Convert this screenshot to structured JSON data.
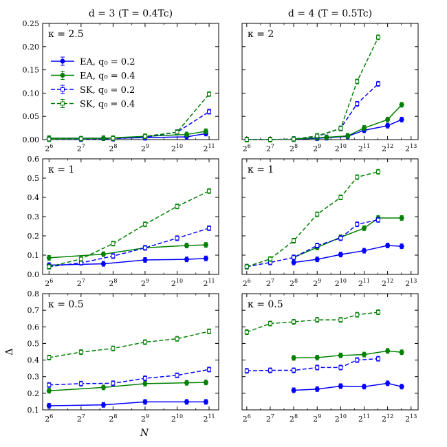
{
  "colors": {
    "EA_q02": "#0000ff",
    "EA_q04": "#008000",
    "SK_q02": "#0000ff",
    "SK_q04": "#008000"
  },
  "legend": [
    {
      "label": "EA, q₀ = 0.2",
      "color": "#0000ff",
      "dash": false,
      "marker": "circle"
    },
    {
      "label": "EA, q₀ = 0.4",
      "color": "#008000",
      "dash": false,
      "marker": "circle"
    },
    {
      "label": "SK, q₀ = 0.2",
      "color": "#0000ff",
      "dash": true,
      "marker": "square"
    },
    {
      "label": "SK, q₀ = 0.4",
      "color": "#008000",
      "dash": true,
      "marker": "square"
    }
  ],
  "chart_data": [
    {
      "type": "line",
      "col": 0,
      "row": 0,
      "title": "d = 3   (T = 0.4Tc)",
      "kappa": "κ = 2.5",
      "xlabel": "",
      "ylabel": "",
      "xlim_log2": [
        5.8,
        11.3
      ],
      "xticks_log2": [
        6,
        7,
        8,
        9,
        10,
        11
      ],
      "ylim": [
        0,
        0.25
      ],
      "yticks": [
        0.0,
        0.05,
        0.1,
        0.15,
        0.2,
        0.25
      ],
      "ytick_labels": [
        "0.00",
        "0.05",
        "0.10",
        "0.15",
        "0.20",
        "0.25"
      ],
      "show_legend": true,
      "series": [
        {
          "name": "EA, q0 = 0.2",
          "log2N": [
            6,
            7.7,
            9,
            10.3,
            10.9
          ],
          "values": [
            0.003,
            0.003,
            0.004,
            0.006,
            0.013
          ]
        },
        {
          "name": "EA, q0 = 0.4",
          "log2N": [
            6,
            7.7,
            9,
            10.3,
            10.9
          ],
          "values": [
            0.003,
            0.003,
            0.007,
            0.011,
            0.018
          ]
        },
        {
          "name": "SK, q0 = 0.2",
          "log2N": [
            6,
            7,
            8,
            9,
            10,
            11
          ],
          "values": [
            0.001,
            0.001,
            0.002,
            0.005,
            0.016,
            0.06
          ]
        },
        {
          "name": "SK, q0 = 0.4",
          "log2N": [
            6,
            7,
            8,
            9,
            10,
            11
          ],
          "values": [
            0.001,
            0.002,
            0.003,
            0.007,
            0.016,
            0.098
          ]
        }
      ]
    },
    {
      "type": "line",
      "col": 1,
      "row": 0,
      "title": "d = 4   (T = 0.5Tc)",
      "kappa": "κ = 2",
      "xlabel": "",
      "ylabel": "",
      "xlim_log2": [
        5.8,
        13.3
      ],
      "xticks_log2": [
        6,
        7,
        8,
        9,
        10,
        11,
        12,
        13
      ],
      "ylim": [
        0,
        0.25
      ],
      "yticks": [
        0.0,
        0.05,
        0.1,
        0.15,
        0.2,
        0.25
      ],
      "ytick_labels": [],
      "show_legend": false,
      "series": [
        {
          "name": "EA, q0 = 0.2",
          "log2N": [
            8,
            9,
            9.4,
            10.3,
            11,
            12,
            12.6
          ],
          "values": [
            0.001,
            0.003,
            0.004,
            0.007,
            0.02,
            0.03,
            0.043
          ]
        },
        {
          "name": "EA, q0 = 0.4",
          "log2N": [
            8,
            9,
            9.4,
            10.3,
            11,
            12,
            12.6
          ],
          "values": [
            0.001,
            0.004,
            0.005,
            0.008,
            0.025,
            0.043,
            0.075
          ]
        },
        {
          "name": "SK, q0 = 0.2",
          "log2N": [
            6,
            7,
            8,
            9,
            10,
            10.7,
            11.6
          ],
          "values": [
            0.0,
            0.0,
            0.001,
            0.007,
            0.024,
            0.077,
            0.12
          ]
        },
        {
          "name": "SK, q0 = 0.4",
          "log2N": [
            6,
            7,
            8,
            9,
            10,
            10.7,
            11.6
          ],
          "values": [
            0.0,
            0.0,
            0.001,
            0.008,
            0.024,
            0.125,
            0.22
          ]
        }
      ]
    },
    {
      "type": "line",
      "col": 0,
      "row": 1,
      "title": "",
      "kappa": "κ = 1",
      "xlabel": "",
      "ylabel": "",
      "xlim_log2": [
        5.8,
        11.3
      ],
      "xticks_log2": [
        6,
        7,
        8,
        9,
        10,
        11
      ],
      "ylim": [
        0,
        0.6
      ],
      "yticks": [
        0.0,
        0.1,
        0.2,
        0.3,
        0.4,
        0.5,
        0.6
      ],
      "ytick_labels": [
        "0.0",
        "0.1",
        "0.2",
        "0.3",
        "0.4",
        "0.5",
        "0.6"
      ],
      "show_legend": false,
      "series": [
        {
          "name": "EA, q0 = 0.2",
          "log2N": [
            6,
            7.7,
            9,
            10.3,
            10.9
          ],
          "values": [
            0.048,
            0.055,
            0.075,
            0.078,
            0.083
          ]
        },
        {
          "name": "EA, q0 = 0.4",
          "log2N": [
            6,
            7.7,
            9,
            10.3,
            10.9
          ],
          "values": [
            0.086,
            0.105,
            0.138,
            0.15,
            0.153
          ]
        },
        {
          "name": "SK, q0 = 0.2",
          "log2N": [
            6,
            7,
            8,
            9,
            10,
            11
          ],
          "values": [
            0.04,
            0.06,
            0.095,
            0.138,
            0.188,
            0.24
          ]
        },
        {
          "name": "SK, q0 = 0.4",
          "log2N": [
            6,
            7,
            8,
            9,
            10,
            11
          ],
          "values": [
            0.04,
            0.08,
            0.16,
            0.26,
            0.353,
            0.433
          ]
        }
      ]
    },
    {
      "type": "line",
      "col": 1,
      "row": 1,
      "title": "",
      "kappa": "κ = 1",
      "xlabel": "",
      "ylabel": "",
      "xlim_log2": [
        5.8,
        13.3
      ],
      "xticks_log2": [
        6,
        7,
        8,
        9,
        10,
        11,
        12,
        13
      ],
      "ylim": [
        0,
        0.6
      ],
      "yticks": [
        0.0,
        0.1,
        0.2,
        0.3,
        0.4,
        0.5,
        0.6
      ],
      "ytick_labels": [],
      "show_legend": false,
      "series": [
        {
          "name": "EA, q0 = 0.2",
          "log2N": [
            8,
            9,
            10,
            11,
            12,
            12.6
          ],
          "values": [
            0.062,
            0.078,
            0.103,
            0.123,
            0.15,
            0.146
          ]
        },
        {
          "name": "EA, q0 = 0.4",
          "log2N": [
            8,
            9,
            10,
            11,
            11.6,
            12.6
          ],
          "values": [
            0.088,
            0.14,
            0.193,
            0.24,
            0.293,
            0.293
          ]
        },
        {
          "name": "SK, q0 = 0.2",
          "log2N": [
            6,
            7,
            8,
            9,
            10,
            10.7,
            11.6
          ],
          "values": [
            0.04,
            0.062,
            0.088,
            0.15,
            0.188,
            0.26,
            0.283
          ]
        },
        {
          "name": "SK, q0 = 0.4",
          "log2N": [
            6,
            7,
            8,
            9,
            10,
            10.7,
            11.6
          ],
          "values": [
            0.04,
            0.08,
            0.175,
            0.312,
            0.4,
            0.505,
            0.533
          ]
        }
      ]
    },
    {
      "type": "line",
      "col": 0,
      "row": 2,
      "title": "",
      "kappa": "κ = 0.5",
      "xlabel": "N",
      "ylabel": "Δ",
      "xlim_log2": [
        5.8,
        11.3
      ],
      "xticks_log2": [
        6,
        7,
        8,
        9,
        10,
        11
      ],
      "ylim": [
        0.1,
        0.8
      ],
      "yticks": [
        0.1,
        0.2,
        0.3,
        0.4,
        0.5,
        0.6,
        0.7,
        0.8
      ],
      "ytick_labels": [
        "0.1",
        "0.2",
        "0.3",
        "0.4",
        "0.5",
        "0.6",
        "0.7",
        "0.8"
      ],
      "show_legend": false,
      "series": [
        {
          "name": "EA, q0 = 0.2",
          "log2N": [
            6,
            7.7,
            9,
            10.3,
            10.9
          ],
          "values": [
            0.125,
            0.13,
            0.148,
            0.148,
            0.148
          ]
        },
        {
          "name": "EA, q0 = 0.4",
          "log2N": [
            6,
            7.7,
            9,
            10.3,
            10.9
          ],
          "values": [
            0.215,
            0.235,
            0.258,
            0.263,
            0.265
          ]
        },
        {
          "name": "SK, q0 = 0.2",
          "log2N": [
            6,
            7,
            8,
            9,
            10,
            11
          ],
          "values": [
            0.25,
            0.258,
            0.26,
            0.29,
            0.308,
            0.343
          ]
        },
        {
          "name": "SK, q0 = 0.4",
          "log2N": [
            6,
            7,
            8,
            9,
            10,
            11
          ],
          "values": [
            0.415,
            0.448,
            0.47,
            0.508,
            0.528,
            0.573
          ]
        }
      ]
    },
    {
      "type": "line",
      "col": 1,
      "row": 2,
      "title": "",
      "kappa": "κ = 0.5",
      "xlabel": "",
      "ylabel": "",
      "xlim_log2": [
        5.8,
        13.3
      ],
      "xticks_log2": [
        6,
        7,
        8,
        9,
        10,
        11,
        12,
        13
      ],
      "ylim": [
        0.1,
        0.8
      ],
      "yticks": [
        0.1,
        0.2,
        0.3,
        0.4,
        0.5,
        0.6,
        0.7,
        0.8
      ],
      "ytick_labels": [],
      "show_legend": false,
      "series": [
        {
          "name": "EA, q0 = 0.2",
          "log2N": [
            8,
            9,
            10,
            11,
            12,
            12.6
          ],
          "values": [
            0.218,
            0.225,
            0.243,
            0.24,
            0.26,
            0.24
          ]
        },
        {
          "name": "EA, q0 = 0.4",
          "log2N": [
            8,
            9,
            10,
            11,
            12,
            12.6
          ],
          "values": [
            0.413,
            0.415,
            0.428,
            0.433,
            0.455,
            0.447
          ]
        },
        {
          "name": "SK, q0 = 0.2",
          "log2N": [
            6,
            7,
            8,
            9,
            10,
            10.7,
            11.6
          ],
          "values": [
            0.335,
            0.338,
            0.338,
            0.355,
            0.355,
            0.4,
            0.408
          ]
        },
        {
          "name": "SK, q0 = 0.4",
          "log2N": [
            6,
            7,
            8,
            9,
            10,
            10.7,
            11.6
          ],
          "values": [
            0.568,
            0.62,
            0.63,
            0.642,
            0.642,
            0.673,
            0.688
          ]
        }
      ]
    }
  ]
}
